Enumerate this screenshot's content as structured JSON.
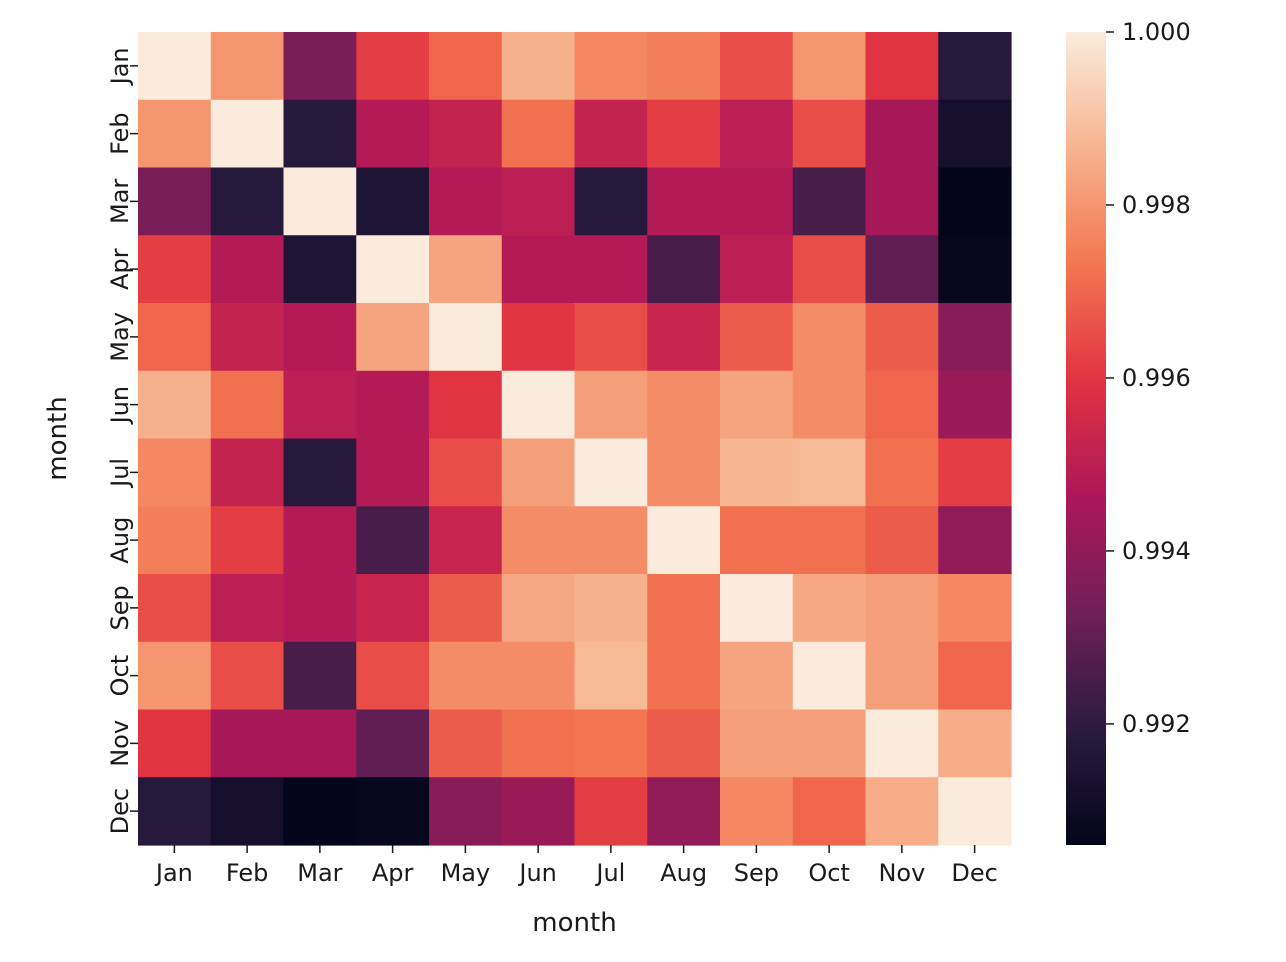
{
  "chart_data": {
    "type": "heatmap",
    "title": "",
    "xlabel": "month",
    "ylabel": "month",
    "x_categories": [
      "Jan",
      "Feb",
      "Mar",
      "Apr",
      "May",
      "Jun",
      "Jul",
      "Aug",
      "Sep",
      "Oct",
      "Nov",
      "Dec"
    ],
    "y_categories": [
      "Jan",
      "Feb",
      "Mar",
      "Apr",
      "May",
      "Jun",
      "Jul",
      "Aug",
      "Sep",
      "Oct",
      "Nov",
      "Dec"
    ],
    "values": [
      [
        1.0,
        0.998,
        0.9935,
        0.9962,
        0.997,
        0.9986,
        0.9977,
        0.9975,
        0.9965,
        0.998,
        0.996,
        0.9918
      ],
      [
        0.998,
        1.0,
        0.9918,
        0.9948,
        0.9952,
        0.9972,
        0.9952,
        0.9962,
        0.995,
        0.9965,
        0.9945,
        0.9912
      ],
      [
        0.9935,
        0.9918,
        1.0,
        0.9915,
        0.9948,
        0.995,
        0.9918,
        0.9948,
        0.9948,
        0.9925,
        0.9945,
        0.9906
      ],
      [
        0.9962,
        0.9948,
        0.9915,
        1.0,
        0.9983,
        0.9948,
        0.9948,
        0.9925,
        0.995,
        0.9965,
        0.993,
        0.9907
      ],
      [
        0.997,
        0.9952,
        0.9948,
        0.9983,
        1.0,
        0.996,
        0.9965,
        0.9953,
        0.9968,
        0.9978,
        0.9968,
        0.9938
      ],
      [
        0.9986,
        0.9972,
        0.995,
        0.9948,
        0.996,
        1.0,
        0.9982,
        0.9978,
        0.9983,
        0.9978,
        0.997,
        0.9942
      ],
      [
        0.9977,
        0.9952,
        0.9918,
        0.9948,
        0.9965,
        0.9982,
        1.0,
        0.9978,
        0.9987,
        0.9988,
        0.9972,
        0.9962
      ],
      [
        0.9975,
        0.9962,
        0.9948,
        0.9925,
        0.9953,
        0.9978,
        0.9978,
        1.0,
        0.9972,
        0.9972,
        0.9968,
        0.994
      ],
      [
        0.9965,
        0.995,
        0.9948,
        0.9953,
        0.9968,
        0.9984,
        0.9986,
        0.9972,
        1.0,
        0.9984,
        0.9982,
        0.9977
      ],
      [
        0.998,
        0.9965,
        0.9925,
        0.9965,
        0.9978,
        0.9978,
        0.9988,
        0.9972,
        0.9983,
        1.0,
        0.9982,
        0.997
      ],
      [
        0.996,
        0.9945,
        0.9945,
        0.993,
        0.9968,
        0.9972,
        0.9973,
        0.9968,
        0.9982,
        0.9982,
        1.0,
        0.9985
      ],
      [
        0.9918,
        0.9912,
        0.9906,
        0.9907,
        0.9938,
        0.9942,
        0.9962,
        0.994,
        0.9977,
        0.997,
        0.9985,
        1.0
      ]
    ],
    "colormap": "rocket",
    "color_range": [
      0.9906,
      1.0
    ],
    "colorbar_ticks": [
      "1.000",
      "0.998",
      "0.996",
      "0.994",
      "0.992"
    ],
    "colorbar_tick_values": [
      1.0,
      0.998,
      0.996,
      0.994,
      0.992
    ],
    "colors": {
      "background": "#ffffff",
      "text": "#1a1a1a",
      "colormap_stops": [
        "#03051a",
        "#2b1b3f",
        "#701f57",
        "#ad1759",
        "#e13342",
        "#f37651",
        "#f6b48f",
        "#faebdd"
      ]
    }
  }
}
